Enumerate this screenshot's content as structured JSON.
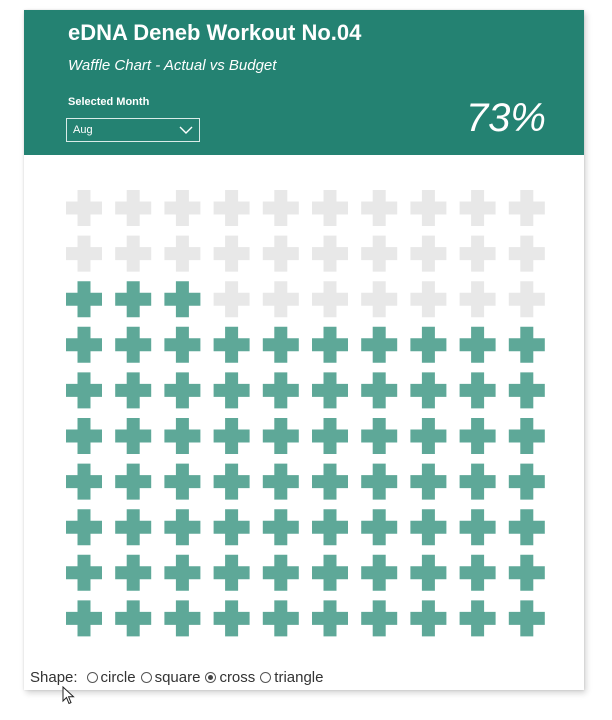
{
  "header": {
    "title": "eDNA Deneb Workout No.04",
    "subtitle": "Waffle Chart - Actual vs Budget",
    "slicer_label": "Selected Month",
    "selected_month": "Aug",
    "percent_label": "73%"
  },
  "chart_data": {
    "type": "waffle",
    "rows": 10,
    "columns": 10,
    "filled_cells": 73,
    "total_cells": 100,
    "percent": 73,
    "fill_order": "bottom-to-top",
    "shape": "cross",
    "colors": {
      "filled": "#5ea898",
      "empty": "#e8e8e8"
    }
  },
  "controls": {
    "shape_label": "Shape:",
    "options": [
      {
        "label": "circle",
        "checked": false
      },
      {
        "label": "square",
        "checked": false
      },
      {
        "label": "cross",
        "checked": true
      },
      {
        "label": "triangle",
        "checked": false
      }
    ]
  },
  "colors": {
    "header_bg": "#248272",
    "header_text": "#ffffff"
  },
  "icons": {
    "dropdown": "chevron-down-icon",
    "cursor": "mouse-pointer-icon"
  }
}
